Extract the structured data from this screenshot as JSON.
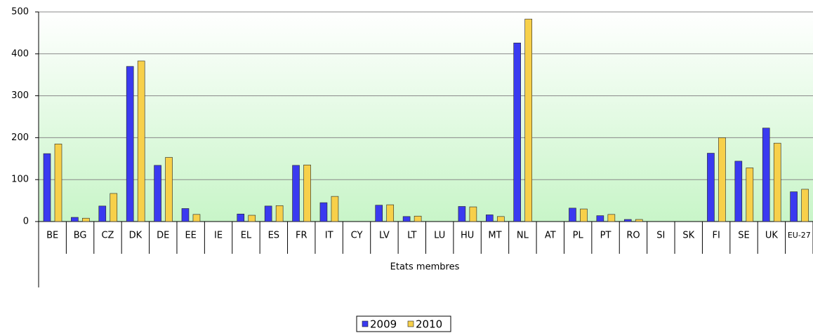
{
  "chart_data": {
    "type": "bar",
    "x_label": "Etats membres",
    "categories": [
      "BE",
      "BG",
      "CZ",
      "DK",
      "DE",
      "EE",
      "IE",
      "EL",
      "ES",
      "FR",
      "IT",
      "CY",
      "LV",
      "LT",
      "LU",
      "HU",
      "MT",
      "NL",
      "AT",
      "PL",
      "PT",
      "RO",
      "SI",
      "SK",
      "FI",
      "SE",
      "UK",
      "EU-27"
    ],
    "series": [
      {
        "name": "2009",
        "color": "#3a3af0",
        "values": [
          162,
          10,
          37,
          370,
          134,
          31,
          0,
          18,
          37,
          134,
          45,
          0,
          39,
          12,
          0,
          36,
          16,
          426,
          0,
          32,
          14,
          5,
          0,
          0,
          163,
          144,
          223,
          71
        ]
      },
      {
        "name": "2010",
        "color": "#f7d04a",
        "values": [
          185,
          8,
          67,
          383,
          153,
          17,
          0,
          15,
          38,
          135,
          60,
          0,
          40,
          13,
          0,
          35,
          12,
          483,
          0,
          30,
          17,
          5,
          0,
          0,
          200,
          128,
          187,
          77
        ]
      }
    ],
    "ylim": [
      0,
      500
    ],
    "yticks": [
      0,
      100,
      200,
      300,
      400,
      500
    ],
    "grid": true,
    "legend": "bottom"
  }
}
